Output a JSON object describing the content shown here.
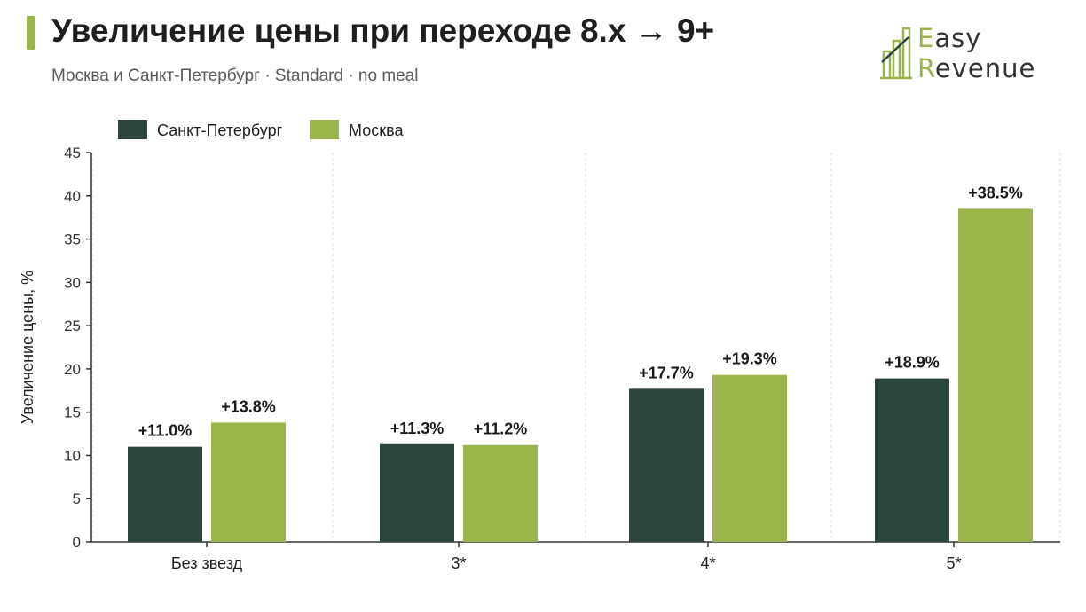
{
  "header": {
    "title": "Увеличение цены при переходе 8.x → 9+",
    "subtitle": "Москва и Санкт-Петербург · Standard · no meal"
  },
  "logo": {
    "line1": "asy",
    "line1_first": "E",
    "line2": "evenue",
    "line2_first": "R",
    "icon": "bar-logo-icon"
  },
  "colors": {
    "spb": "#2d463c",
    "moscow": "#9bb54a",
    "axis": "#333333",
    "grid": "#dcdcdc"
  },
  "chart_data": {
    "type": "bar",
    "categories": [
      "Без звезд",
      "3*",
      "4*",
      "5*"
    ],
    "series": [
      {
        "name": "Санкт-Петербург",
        "values": [
          11.0,
          11.3,
          17.7,
          18.9
        ],
        "labels": [
          "+11.0%",
          "+11.3%",
          "+17.7%",
          "+18.9%"
        ],
        "color": "#2d463c"
      },
      {
        "name": "Москва",
        "values": [
          13.8,
          11.2,
          19.3,
          38.5
        ],
        "labels": [
          "+13.8%",
          "+11.2%",
          "+19.3%",
          "+38.5%"
        ],
        "color": "#9bb54a"
      }
    ],
    "ylabel": "Увеличение цены, %",
    "xlabel": "",
    "ylim": [
      0,
      45
    ],
    "yticks": [
      0,
      5,
      10,
      15,
      20,
      25,
      30,
      35,
      40,
      45
    ],
    "grid": "vertical dashed lines",
    "legend": "top-left"
  }
}
